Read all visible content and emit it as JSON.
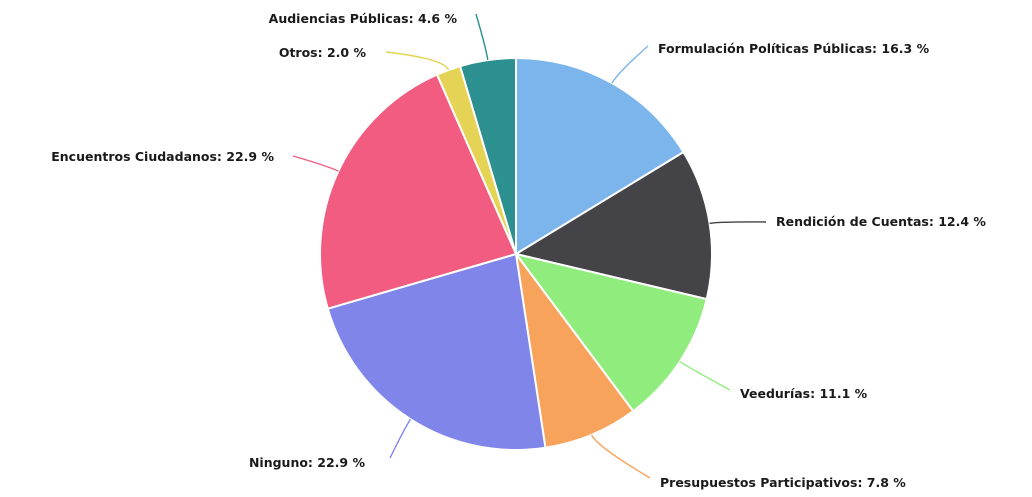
{
  "chart_data": {
    "type": "pie",
    "unit": "%",
    "slices": [
      {
        "name": "Formulación Políticas Públicas",
        "value": 16.3,
        "label": "Formulación Políticas Públicas: 16.3 %",
        "color": "#7cb5ec"
      },
      {
        "name": "Rendición de Cuentas",
        "value": 12.4,
        "label": "Rendición de Cuentas: 12.4 %",
        "color": "#434348"
      },
      {
        "name": "Veedurías",
        "value": 11.1,
        "label": "Veedurías: 11.1 %",
        "color": "#90ed7d"
      },
      {
        "name": "Presupuestos Participativos",
        "value": 7.8,
        "label": "Presupuestos Participativos: 7.8 %",
        "color": "#f7a35c"
      },
      {
        "name": "Ninguno",
        "value": 22.9,
        "label": "Ninguno: 22.9 %",
        "color": "#8085e9"
      },
      {
        "name": "Encuentros Ciudadanos",
        "value": 22.9,
        "label": "Encuentros Ciudadanos: 22.9 %",
        "color": "#f15c80"
      },
      {
        "name": "Otros",
        "value": 2.0,
        "label": "Otros: 2.0 %",
        "color": "#e4d354"
      },
      {
        "name": "Audiencias Públicas",
        "value": 4.6,
        "label": "Audiencias Públicas: 4.6 %",
        "color": "#2b908f"
      }
    ]
  }
}
